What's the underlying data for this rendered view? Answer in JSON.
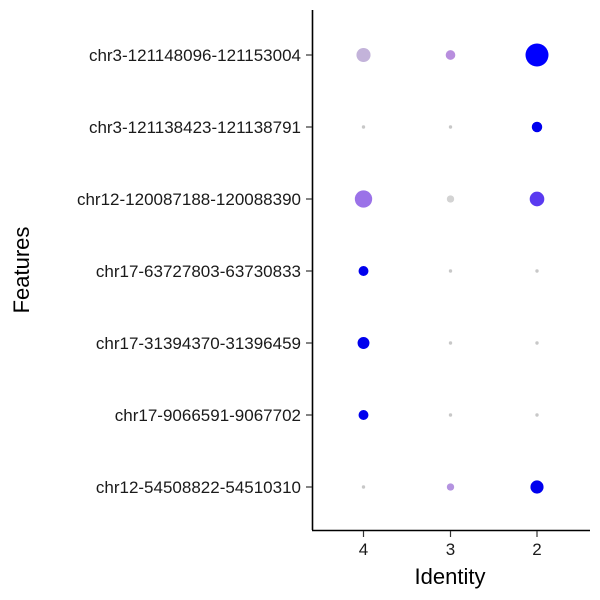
{
  "chart_data": {
    "type": "scatter",
    "xlabel": "Identity",
    "ylabel": "Features",
    "x_categories": [
      "4",
      "3",
      "2"
    ],
    "y_categories": [
      "chr3-121148096-121153004",
      "chr3-121138423-121138791",
      "chr12-120087188-120088390",
      "chr17-63727803-63730833",
      "chr17-31394370-31396459",
      "chr17-9066591-9067702",
      "chr12-54508822-54510310"
    ],
    "color_scale": {
      "low": "#d3d3d3",
      "high": "#0000ff"
    },
    "points": [
      {
        "x": "4",
        "y": "chr3-121148096-121153004",
        "size": 0.35,
        "color": "#c3b3da"
      },
      {
        "x": "3",
        "y": "chr3-121148096-121153004",
        "size": 0.15,
        "color": "#b88ede"
      },
      {
        "x": "2",
        "y": "chr3-121148096-121153004",
        "size": 1.0,
        "color": "#0000ff"
      },
      {
        "x": "4",
        "y": "chr3-121138423-121138791",
        "size": 0.01,
        "color": "#c8c8c8"
      },
      {
        "x": "3",
        "y": "chr3-121138423-121138791",
        "size": 0.01,
        "color": "#c8c8c8"
      },
      {
        "x": "2",
        "y": "chr3-121138423-121138791",
        "size": 0.18,
        "color": "#0000ee"
      },
      {
        "x": "4",
        "y": "chr12-120087188-120088390",
        "size": 0.55,
        "color": "#9b72e8"
      },
      {
        "x": "3",
        "y": "chr12-120087188-120088390",
        "size": 0.08,
        "color": "#d3d3d3"
      },
      {
        "x": "2",
        "y": "chr12-120087188-120088390",
        "size": 0.38,
        "color": "#5a3af0"
      },
      {
        "x": "4",
        "y": "chr17-63727803-63730833",
        "size": 0.16,
        "color": "#0000ee"
      },
      {
        "x": "3",
        "y": "chr17-63727803-63730833",
        "size": 0.01,
        "color": "#c8c8c8"
      },
      {
        "x": "2",
        "y": "chr17-63727803-63730833",
        "size": 0.01,
        "color": "#c8c8c8"
      },
      {
        "x": "4",
        "y": "chr17-31394370-31396459",
        "size": 0.24,
        "color": "#0000ee"
      },
      {
        "x": "3",
        "y": "chr17-31394370-31396459",
        "size": 0.01,
        "color": "#c8c8c8"
      },
      {
        "x": "2",
        "y": "chr17-31394370-31396459",
        "size": 0.01,
        "color": "#c8c8c8"
      },
      {
        "x": "4",
        "y": "chr17-9066591-9067702",
        "size": 0.16,
        "color": "#0000ee"
      },
      {
        "x": "3",
        "y": "chr17-9066591-9067702",
        "size": 0.01,
        "color": "#c8c8c8"
      },
      {
        "x": "2",
        "y": "chr17-9066591-9067702",
        "size": 0.01,
        "color": "#c8c8c8"
      },
      {
        "x": "4",
        "y": "chr12-54508822-54510310",
        "size": 0.01,
        "color": "#c8c8c8"
      },
      {
        "x": "3",
        "y": "chr12-54508822-54510310",
        "size": 0.08,
        "color": "#b493e0"
      },
      {
        "x": "2",
        "y": "chr12-54508822-54510310",
        "size": 0.3,
        "color": "#0000ee"
      }
    ],
    "grid": false,
    "legend": "none"
  }
}
